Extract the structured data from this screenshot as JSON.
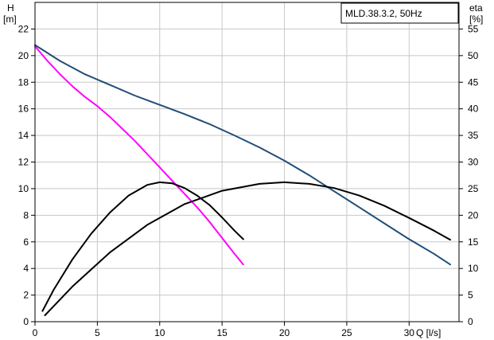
{
  "chart_data": {
    "type": "line",
    "title": "MLD.38.3.2, 50Hz",
    "left_axis": {
      "label_line1": "H",
      "label_line2": "[m]",
      "ylim": [
        0,
        24
      ],
      "ticks": [
        0,
        2,
        4,
        6,
        8,
        10,
        12,
        14,
        16,
        18,
        20,
        22
      ]
    },
    "right_axis": {
      "label_line1": "eta",
      "label_line2": "[%]",
      "ylim": [
        0,
        60
      ],
      "ticks": [
        0,
        5,
        10,
        15,
        20,
        25,
        30,
        35,
        40,
        45,
        50,
        55
      ]
    },
    "x_axis": {
      "label": "Q [l/s]",
      "xlim": [
        0,
        34
      ],
      "ticks": [
        0,
        5,
        10,
        15,
        20,
        25,
        30
      ]
    },
    "grid": true,
    "series": [
      {
        "color": "#1f4e79",
        "axis": "left",
        "points": [
          [
            0,
            20.8
          ],
          [
            2,
            19.6
          ],
          [
            4,
            18.6
          ],
          [
            6,
            17.8
          ],
          [
            8,
            17.0
          ],
          [
            10,
            16.3
          ],
          [
            12,
            15.6
          ],
          [
            14,
            14.85
          ],
          [
            16,
            14.0
          ],
          [
            18,
            13.1
          ],
          [
            20,
            12.1
          ],
          [
            22,
            11.0
          ],
          [
            24,
            9.8
          ],
          [
            26,
            8.6
          ],
          [
            28,
            7.4
          ],
          [
            30,
            6.2
          ],
          [
            32,
            5.1
          ],
          [
            33.3,
            4.3
          ]
        ]
      },
      {
        "color": "#ff00ff",
        "axis": "left",
        "points": [
          [
            0,
            20.7
          ],
          [
            1,
            19.6
          ],
          [
            2,
            18.6
          ],
          [
            3,
            17.7
          ],
          [
            4,
            16.9
          ],
          [
            5,
            16.2
          ],
          [
            6,
            15.4
          ],
          [
            7,
            14.5
          ],
          [
            8,
            13.6
          ],
          [
            9,
            12.6
          ],
          [
            10,
            11.6
          ],
          [
            11,
            10.6
          ],
          [
            12,
            9.6
          ],
          [
            13,
            8.6
          ],
          [
            14,
            7.5
          ],
          [
            15,
            6.3
          ],
          [
            16,
            5.1
          ],
          [
            16.7,
            4.3
          ]
        ]
      },
      {
        "color": "#000000",
        "axis": "right",
        "points": [
          [
            0.6,
            2.0
          ],
          [
            1.5,
            6.0
          ],
          [
            3,
            11.7
          ],
          [
            4.5,
            16.5
          ],
          [
            6,
            20.5
          ],
          [
            7.5,
            23.7
          ],
          [
            9,
            25.7
          ],
          [
            10,
            26.2
          ],
          [
            11,
            26.0
          ],
          [
            12,
            25.1
          ],
          [
            13,
            23.7
          ],
          [
            14,
            21.9
          ],
          [
            15,
            19.6
          ],
          [
            16,
            17.1
          ],
          [
            16.7,
            15.5
          ]
        ]
      },
      {
        "color": "#000000",
        "axis": "right",
        "points": [
          [
            0.8,
            1.2
          ],
          [
            3,
            6.6
          ],
          [
            6,
            13.0
          ],
          [
            9,
            18.2
          ],
          [
            12,
            22.1
          ],
          [
            15,
            24.6
          ],
          [
            18,
            25.9
          ],
          [
            20,
            26.2
          ],
          [
            22,
            25.9
          ],
          [
            24,
            25.1
          ],
          [
            26,
            23.7
          ],
          [
            28,
            21.8
          ],
          [
            30,
            19.5
          ],
          [
            32,
            17.1
          ],
          [
            33.3,
            15.4
          ]
        ]
      }
    ]
  }
}
